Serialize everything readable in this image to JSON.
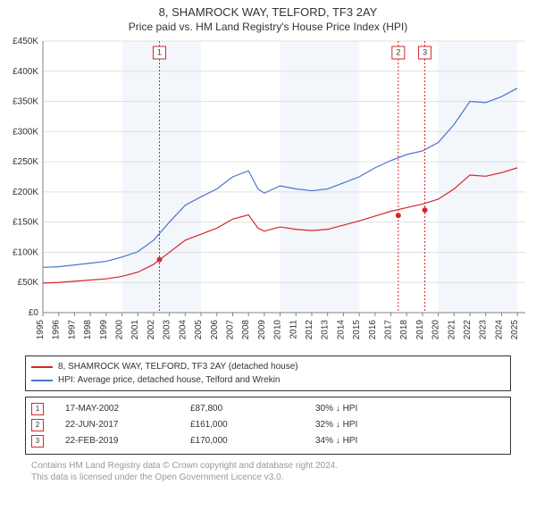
{
  "title_line1": "8, SHAMROCK WAY, TELFORD, TF3 2AY",
  "title_line2": "Price paid vs. HM Land Registry's House Price Index (HPI)",
  "chart": {
    "type": "line",
    "background_color": "#ffffff",
    "alt_band_color": "#f3f6fb",
    "grid_color": "#e0e0e0",
    "axis_color": "#808080",
    "x_years": [
      1995,
      1996,
      1997,
      1998,
      1999,
      2000,
      2001,
      2002,
      2003,
      2004,
      2005,
      2006,
      2007,
      2008,
      2009,
      2010,
      2011,
      2012,
      2013,
      2014,
      2015,
      2016,
      2017,
      2018,
      2019,
      2020,
      2021,
      2022,
      2023,
      2024,
      2025
    ],
    "x_min": 1995,
    "x_max": 2025.5,
    "y_min": 0,
    "y_max": 450000,
    "y_tick_step": 50000,
    "y_tick_labels": [
      "£0",
      "£50K",
      "£100K",
      "£150K",
      "£200K",
      "£250K",
      "£300K",
      "£350K",
      "£400K",
      "£450K"
    ],
    "series": [
      {
        "name": "hpi",
        "label": "HPI: Average price, detached house, Telford and Wrekin",
        "color": "#4a74c9",
        "line_width": 1.2,
        "points": [
          [
            1995,
            75000
          ],
          [
            1996,
            76000
          ],
          [
            1997,
            79000
          ],
          [
            1998,
            82000
          ],
          [
            1999,
            85000
          ],
          [
            2000,
            92000
          ],
          [
            2001,
            101000
          ],
          [
            2002,
            120000
          ],
          [
            2003,
            150000
          ],
          [
            2004,
            178000
          ],
          [
            2005,
            192000
          ],
          [
            2006,
            205000
          ],
          [
            2007,
            225000
          ],
          [
            2008,
            235000
          ],
          [
            2008.6,
            205000
          ],
          [
            2009,
            198000
          ],
          [
            2010,
            210000
          ],
          [
            2011,
            205000
          ],
          [
            2012,
            202000
          ],
          [
            2013,
            205000
          ],
          [
            2014,
            215000
          ],
          [
            2015,
            225000
          ],
          [
            2016,
            240000
          ],
          [
            2017,
            252000
          ],
          [
            2018,
            262000
          ],
          [
            2019,
            268000
          ],
          [
            2020,
            282000
          ],
          [
            2021,
            312000
          ],
          [
            2022,
            350000
          ],
          [
            2023,
            348000
          ],
          [
            2024,
            358000
          ],
          [
            2025,
            372000
          ]
        ]
      },
      {
        "name": "property",
        "label": "8, SHAMROCK WAY, TELFORD, TF3 2AY (detached house)",
        "color": "#d6262a",
        "line_width": 1.2,
        "points": [
          [
            1995,
            49000
          ],
          [
            1996,
            50000
          ],
          [
            1997,
            52000
          ],
          [
            1998,
            54000
          ],
          [
            1999,
            56000
          ],
          [
            2000,
            60000
          ],
          [
            2001,
            67000
          ],
          [
            2002,
            80000
          ],
          [
            2003,
            100000
          ],
          [
            2004,
            120000
          ],
          [
            2005,
            130000
          ],
          [
            2006,
            140000
          ],
          [
            2007,
            155000
          ],
          [
            2008,
            162000
          ],
          [
            2008.6,
            140000
          ],
          [
            2009,
            135000
          ],
          [
            2010,
            142000
          ],
          [
            2011,
            138000
          ],
          [
            2012,
            136000
          ],
          [
            2013,
            138000
          ],
          [
            2014,
            145000
          ],
          [
            2015,
            152000
          ],
          [
            2016,
            160000
          ],
          [
            2017,
            168000
          ],
          [
            2018,
            174000
          ],
          [
            2019,
            180000
          ],
          [
            2020,
            188000
          ],
          [
            2021,
            205000
          ],
          [
            2022,
            228000
          ],
          [
            2023,
            226000
          ],
          [
            2024,
            232000
          ],
          [
            2025,
            240000
          ]
        ]
      }
    ],
    "sale_markers": [
      {
        "n": "1",
        "year": 2002.37,
        "price": 87800,
        "color": "#d6262a"
      },
      {
        "n": "2",
        "year": 2017.47,
        "price": 161000,
        "color": "#d6262a"
      },
      {
        "n": "3",
        "year": 2019.15,
        "price": 170000,
        "color": "#d6262a"
      }
    ]
  },
  "legend_series": [
    {
      "color": "#d6262a",
      "text": "8, SHAMROCK WAY, TELFORD, TF3 2AY (detached house)"
    },
    {
      "color": "#4a74c9",
      "text": "HPI: Average price, detached house, Telford and Wrekin"
    }
  ],
  "legend_sales": [
    {
      "n": "1",
      "color": "#d6262a",
      "date": "17-MAY-2002",
      "price": "£87,800",
      "diff": "30% ↓ HPI"
    },
    {
      "n": "2",
      "color": "#d6262a",
      "date": "22-JUN-2017",
      "price": "£161,000",
      "diff": "32% ↓ HPI"
    },
    {
      "n": "3",
      "color": "#d6262a",
      "date": "22-FEB-2019",
      "price": "£170,000",
      "diff": "34% ↓ HPI"
    }
  ],
  "attribution_line1": "Contains HM Land Registry data © Crown copyright and database right 2024.",
  "attribution_line2": "This data is licensed under the Open Government Licence v3.0."
}
